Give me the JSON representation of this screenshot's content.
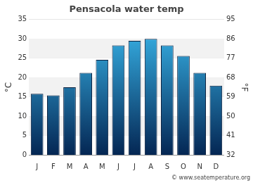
{
  "chart_data": {
    "type": "bar",
    "title": "Pensacola water temp",
    "categories": [
      "J",
      "F",
      "M",
      "A",
      "M",
      "J",
      "J",
      "A",
      "S",
      "O",
      "N",
      "D"
    ],
    "values": [
      15.8,
      15.4,
      17.5,
      21.2,
      24.6,
      28.3,
      29.5,
      30.0,
      28.3,
      25.6,
      21.2,
      17.9
    ],
    "color": "#1a8fd6",
    "ylabel": "°C",
    "ylim": [
      0,
      35
    ],
    "yticks": [
      0,
      5,
      10,
      15,
      20,
      25,
      30,
      35
    ],
    "y2label": "°F",
    "y2lim": [
      32,
      95
    ],
    "y2ticks": [
      32,
      41,
      50,
      59,
      68,
      77,
      86,
      95
    ],
    "grid": true,
    "annotations": [
      "© www.seatemperature.org"
    ]
  }
}
